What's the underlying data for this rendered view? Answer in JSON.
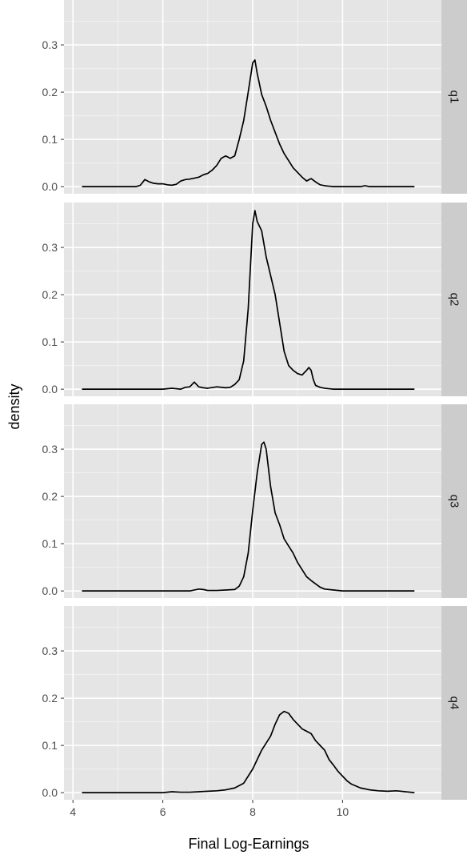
{
  "chart_data": {
    "type": "line",
    "subtype": "density-facets",
    "xlabel": "Final Log-Earnings",
    "ylabel": "density",
    "xlim": [
      3.8,
      12.2
    ],
    "ylim": [
      -0.015,
      0.395
    ],
    "x_ticks": [
      4,
      6,
      8,
      10
    ],
    "x_tick_labels": [
      "4",
      "6",
      "8",
      "10"
    ],
    "y_ticks": [
      0.0,
      0.1,
      0.2,
      0.3
    ],
    "y_tick_labels": [
      "0.0",
      "0.1",
      "0.2",
      "0.3"
    ],
    "grid": true,
    "colors": {
      "panel_bg": "#e5e5e5",
      "grid_major": "#ffffff",
      "grid_minor": "#f2f2f2",
      "strip_bg": "#cccccc",
      "line": "#000000"
    },
    "facets": [
      {
        "label": "q1",
        "x": [
          4.2,
          5.4,
          5.5,
          5.6,
          5.7,
          5.8,
          5.9,
          6.0,
          6.1,
          6.2,
          6.3,
          6.4,
          6.5,
          6.6,
          6.7,
          6.8,
          6.9,
          7.0,
          7.1,
          7.2,
          7.3,
          7.4,
          7.5,
          7.6,
          7.7,
          7.8,
          7.9,
          8.0,
          8.05,
          8.1,
          8.2,
          8.3,
          8.4,
          8.5,
          8.6,
          8.7,
          8.8,
          8.9,
          9.0,
          9.1,
          9.2,
          9.3,
          9.4,
          9.5,
          9.6,
          9.7,
          9.8,
          9.9,
          10.0,
          10.2,
          10.4,
          10.5,
          10.6,
          10.8,
          11.0,
          11.6
        ],
        "y": [
          0.0,
          0.0,
          0.003,
          0.015,
          0.01,
          0.007,
          0.006,
          0.006,
          0.004,
          0.003,
          0.005,
          0.012,
          0.015,
          0.016,
          0.018,
          0.02,
          0.025,
          0.028,
          0.035,
          0.045,
          0.06,
          0.065,
          0.06,
          0.065,
          0.1,
          0.14,
          0.2,
          0.262,
          0.268,
          0.24,
          0.195,
          0.17,
          0.14,
          0.115,
          0.09,
          0.07,
          0.055,
          0.04,
          0.03,
          0.02,
          0.012,
          0.017,
          0.01,
          0.004,
          0.002,
          0.001,
          0.0,
          0.0,
          0.0,
          0.0,
          0.0,
          0.002,
          0.0,
          0.0,
          0.0,
          0.0
        ]
      },
      {
        "label": "q2",
        "x": [
          4.2,
          6.0,
          6.2,
          6.4,
          6.5,
          6.6,
          6.7,
          6.8,
          6.9,
          7.0,
          7.2,
          7.4,
          7.5,
          7.6,
          7.7,
          7.8,
          7.9,
          8.0,
          8.05,
          8.1,
          8.2,
          8.3,
          8.4,
          8.5,
          8.6,
          8.7,
          8.8,
          8.9,
          9.0,
          9.1,
          9.2,
          9.25,
          9.3,
          9.35,
          9.4,
          9.5,
          9.6,
          9.7,
          9.8,
          9.9,
          10.0,
          10.2,
          10.4,
          10.6,
          10.8,
          11.0,
          11.6
        ],
        "y": [
          0.0,
          0.0,
          0.002,
          0.0,
          0.004,
          0.005,
          0.015,
          0.005,
          0.003,
          0.002,
          0.005,
          0.003,
          0.004,
          0.01,
          0.02,
          0.06,
          0.17,
          0.35,
          0.378,
          0.355,
          0.335,
          0.28,
          0.24,
          0.2,
          0.14,
          0.08,
          0.05,
          0.04,
          0.033,
          0.03,
          0.04,
          0.046,
          0.04,
          0.02,
          0.008,
          0.004,
          0.002,
          0.001,
          0.0,
          0.0,
          0.0,
          0.0,
          0.0,
          0.0,
          0.0,
          0.0,
          0.0
        ]
      },
      {
        "label": "q3",
        "x": [
          4.2,
          5.7,
          6.6,
          6.8,
          6.9,
          7.0,
          7.2,
          7.4,
          7.6,
          7.7,
          7.8,
          7.9,
          8.0,
          8.1,
          8.2,
          8.25,
          8.3,
          8.4,
          8.5,
          8.6,
          8.7,
          8.8,
          8.9,
          9.0,
          9.1,
          9.2,
          9.3,
          9.4,
          9.5,
          9.6,
          9.8,
          10.0,
          10.5,
          11.0,
          11.6
        ],
        "y": [
          0.0,
          0.0,
          0.0,
          0.004,
          0.003,
          0.001,
          0.001,
          0.002,
          0.003,
          0.01,
          0.03,
          0.08,
          0.17,
          0.25,
          0.31,
          0.315,
          0.3,
          0.22,
          0.165,
          0.14,
          0.11,
          0.095,
          0.08,
          0.06,
          0.045,
          0.03,
          0.022,
          0.015,
          0.008,
          0.004,
          0.002,
          0.0,
          0.0,
          0.0,
          0.0
        ]
      },
      {
        "label": "q4",
        "x": [
          4.2,
          6.0,
          6.2,
          6.4,
          6.6,
          6.8,
          7.0,
          7.2,
          7.4,
          7.6,
          7.8,
          8.0,
          8.2,
          8.4,
          8.5,
          8.6,
          8.7,
          8.8,
          8.9,
          9.0,
          9.1,
          9.2,
          9.3,
          9.4,
          9.5,
          9.6,
          9.7,
          9.8,
          9.9,
          10.0,
          10.1,
          10.2,
          10.4,
          10.6,
          10.8,
          11.0,
          11.2,
          11.4,
          11.6
        ],
        "y": [
          0.0,
          0.0,
          0.002,
          0.001,
          0.001,
          0.002,
          0.003,
          0.004,
          0.006,
          0.01,
          0.02,
          0.05,
          0.09,
          0.12,
          0.145,
          0.165,
          0.172,
          0.168,
          0.155,
          0.145,
          0.135,
          0.13,
          0.125,
          0.11,
          0.1,
          0.09,
          0.07,
          0.058,
          0.045,
          0.035,
          0.025,
          0.018,
          0.01,
          0.006,
          0.004,
          0.003,
          0.004,
          0.002,
          0.0
        ]
      }
    ]
  }
}
